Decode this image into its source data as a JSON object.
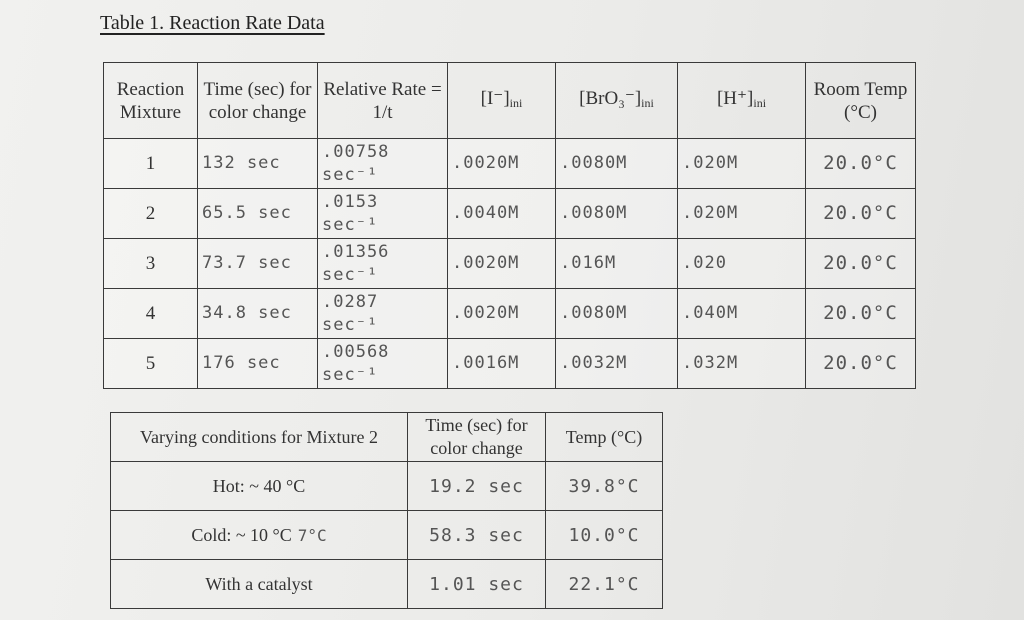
{
  "title": "Table 1. Reaction Rate Data",
  "table1": {
    "header": [
      "Reaction Mixture",
      "Time (sec) for color change",
      "Relative Rate = 1/t",
      {
        "main": "[I⁻]",
        "sub": "ini"
      },
      {
        "main": "[BrO₃⁻]",
        "sub": "ini"
      },
      {
        "main": "[H⁺]",
        "sub": "ini"
      },
      "Room Temp (°C)"
    ],
    "rows": [
      [
        "1",
        "132 sec",
        ".00758 sec⁻¹",
        ".0020M",
        ".0080M",
        ".020M",
        "20.0°C"
      ],
      [
        "2",
        "65.5 sec",
        ".0153 sec⁻¹",
        ".0040M",
        ".0080M",
        ".020M",
        "20.0°C"
      ],
      [
        "3",
        "73.7 sec",
        ".01356 sec⁻¹",
        ".0020M",
        ".016M",
        ".020",
        "20.0°C"
      ],
      [
        "4",
        "34.8 sec",
        ".0287 sec⁻¹",
        ".0020M",
        ".0080M",
        ".040M",
        "20.0°C"
      ],
      [
        "5",
        "176 sec",
        ".00568 sec⁻¹",
        ".0016M",
        ".0032M",
        ".032M",
        "20.0°C"
      ]
    ]
  },
  "table2": {
    "header": [
      "Varying conditions for Mixture 2",
      "Time (sec) for color change",
      "Temp (°C)"
    ],
    "rows": [
      [
        {
          "text": "Hot: ~ 40 °C"
        },
        "19.2 sec",
        "39.8°C"
      ],
      [
        {
          "text": "Cold: ~ 10 °C",
          "note": "7°C"
        },
        "58.3 sec",
        "10.0°C"
      ],
      [
        {
          "text": "With a catalyst"
        },
        "1.01 sec",
        "22.1°C"
      ]
    ]
  }
}
